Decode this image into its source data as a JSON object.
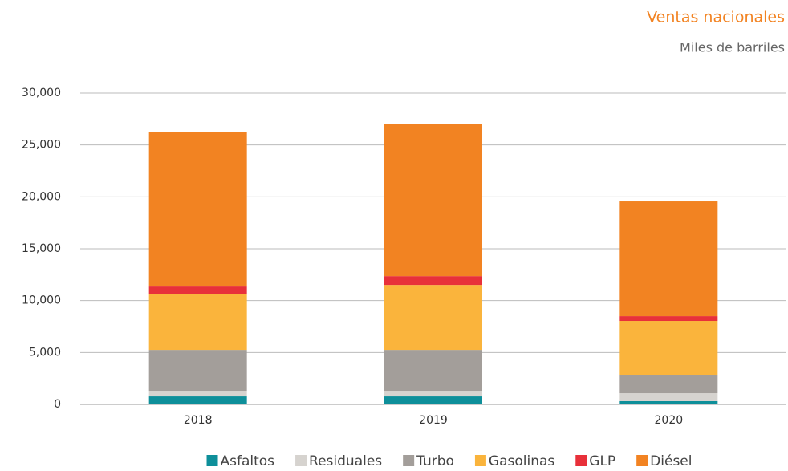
{
  "chart_data": {
    "type": "bar",
    "title": "Ventas nacionales",
    "subtitle": "Miles de barriles",
    "categories": [
      "2018",
      "2019",
      "2020"
    ],
    "series": [
      {
        "name": "Asfaltos",
        "color": "#0e8f9a",
        "values": [
          770,
          770,
          310
        ]
      },
      {
        "name": "Residuales",
        "color": "#d6d3cf",
        "values": [
          540,
          540,
          770
        ]
      },
      {
        "name": "Turbo",
        "color": "#a39e9a",
        "values": [
          3940,
          3940,
          1780
        ]
      },
      {
        "name": "Gasolinas",
        "color": "#fab43c",
        "values": [
          5410,
          6260,
          5180
        ]
      },
      {
        "name": "GLP",
        "color": "#e8303a",
        "values": [
          700,
          850,
          460
        ]
      },
      {
        "name": "Diésel",
        "color": "#f28322",
        "values": [
          14920,
          14690,
          11060
        ]
      }
    ],
    "stacked": true,
    "ylim": [
      0,
      30000
    ],
    "yticks": [
      0,
      {
        "value": 5000,
        "label": "5,000"
      },
      {
        "value": 10000,
        "label": "10,000"
      },
      {
        "value": 15000,
        "label": "15,000"
      },
      {
        "value": 20000,
        "label": "20,000"
      },
      {
        "value": 25000,
        "label": "25,000"
      },
      {
        "value": 30000,
        "label": "30,000"
      }
    ],
    "grid": true
  }
}
